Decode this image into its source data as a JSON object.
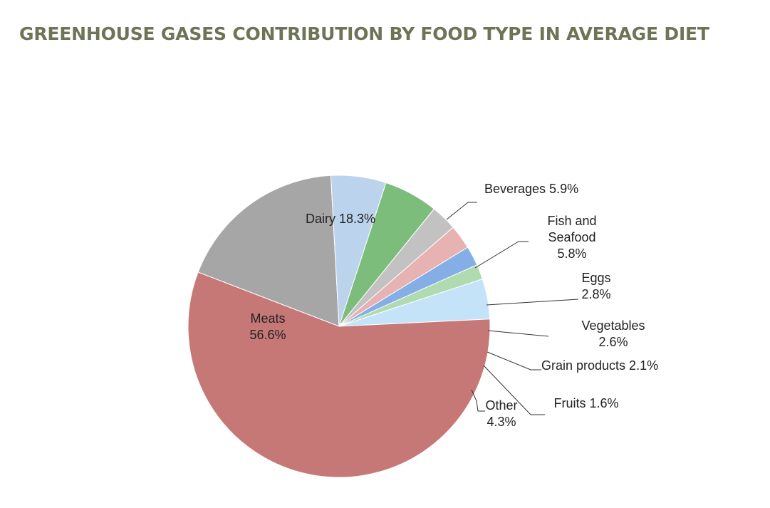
{
  "chart_data": {
    "type": "pie",
    "title": "GREENHOUSE GASES CONTRIBUTION BY FOOD TYPE IN AVERAGE DIET",
    "title_color": "#6d7556",
    "start_category": "Dairy",
    "direction": "clockwise",
    "slices": [
      {
        "category": "Dairy",
        "value": 18.3,
        "color": "#a6a6a6",
        "label_lines": [
          "Dairy 18.3%"
        ]
      },
      {
        "category": "Beverages",
        "value": 5.9,
        "color": "#bcd3ee",
        "label_lines": [
          "Beverages 5.9%"
        ]
      },
      {
        "category": "Fish and Seafood",
        "value": 5.8,
        "color": "#7cbd7c",
        "label_lines": [
          "Fish and",
          "Seafood",
          "5.8%"
        ]
      },
      {
        "category": "Eggs",
        "value": 2.8,
        "color": "#c2c2c2",
        "label_lines": [
          "Eggs",
          "2.8%"
        ]
      },
      {
        "category": "Vegetables",
        "value": 2.6,
        "color": "#e6b2b2",
        "label_lines": [
          "Vegetables",
          "2.6%"
        ]
      },
      {
        "category": "Grain products",
        "value": 2.1,
        "color": "#86aee6",
        "label_lines": [
          "Grain products 2.1%"
        ]
      },
      {
        "category": "Fruits",
        "value": 1.6,
        "color": "#b0dab0",
        "label_lines": [
          "Fruits 1.6%"
        ]
      },
      {
        "category": "Other",
        "value": 4.3,
        "color": "#c4e3f9",
        "label_lines": [
          "Other",
          "4.3%"
        ]
      },
      {
        "category": "Meats",
        "value": 56.6,
        "color": "#c67876",
        "label_lines": [
          "Meats",
          "56.6%"
        ]
      }
    ]
  }
}
